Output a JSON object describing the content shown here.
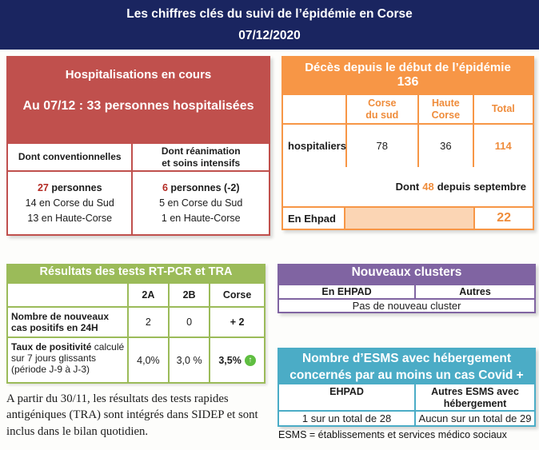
{
  "header": {
    "title": "Les chiffres clés du suivi de l’épidémie en Corse",
    "date": "07/12/2020"
  },
  "hospitalisations": {
    "title": "Hospitalisations en cours",
    "subtitle": "Au 07/12 : 33 personnes hospitalisées",
    "columns": [
      {
        "header": "Dont conventionnelles",
        "count": "27",
        "count_suffix": " personnes",
        "lines": [
          "14 en Corse du Sud",
          "13 en Haute-Corse"
        ]
      },
      {
        "header": "Dont réanimation\net soins intensifs",
        "count": "6",
        "count_suffix": " personnes (-2)",
        "lines": [
          "5 en Corse du Sud",
          "1 en Haute-Corse"
        ]
      }
    ]
  },
  "deces": {
    "title": "Décès depuis le début de l’épidémie",
    "total": "136",
    "col_headers": [
      "Corse\ndu sud",
      "Haute\nCorse",
      "Total"
    ],
    "row_label": "hospitaliers",
    "values": [
      "78",
      "36",
      "114"
    ],
    "note_prefix": "Dont",
    "note_value": "48",
    "note_suffix": "depuis septembre",
    "ehpad_label": "En Ehpad",
    "ehpad_value": "22"
  },
  "tests": {
    "title": "Résultats des tests RT-PCR et TRA",
    "col_headers": [
      "2A",
      "2B",
      "Corse"
    ],
    "rows": [
      {
        "label_bold": "Nombre de nouveaux cas positifs en 24H",
        "label_rest": "",
        "values": [
          "2",
          "0",
          "+ 2"
        ]
      },
      {
        "label_bold": "Taux de positivité",
        "label_rest": " calculé sur 7 jours glissants (période J-9 à J-3)",
        "values": [
          "4,0%",
          "3,0 %",
          "3,5%"
        ]
      }
    ],
    "trend_icon": "circle-up-arrow",
    "trend_glyph": "↑"
  },
  "note_tra": "A partir du 30/11, les résultats des tests rapides antigéniques (TRA) sont intégrés dans SIDEP et sont inclus dans le bilan quotidien.",
  "clusters": {
    "title": "Nouveaux clusters",
    "col_headers": [
      "En EHPAD",
      "Autres"
    ],
    "status": "Pas de nouveau cluster"
  },
  "esms": {
    "title_line1": "Nombre d’ESMS avec hébergement",
    "title_line2": "concernés par au moins un cas Covid +",
    "col_headers": [
      "EHPAD",
      "Autres ESMS avec hébergement"
    ],
    "values": [
      "1 sur un total de 28",
      "Aucun sur un total de 29"
    ],
    "footnote": "ESMS = établissements et services médico sociaux"
  },
  "colors": {
    "navy": "#1a2560",
    "red": "#c0504d",
    "red_number": "#b32a23",
    "orange": "#f79646",
    "orange_light": "#fbd5b4",
    "green": "#9bbb59",
    "trend_green": "#5fbe41",
    "purple": "#8064a2",
    "teal": "#4bacc6"
  }
}
